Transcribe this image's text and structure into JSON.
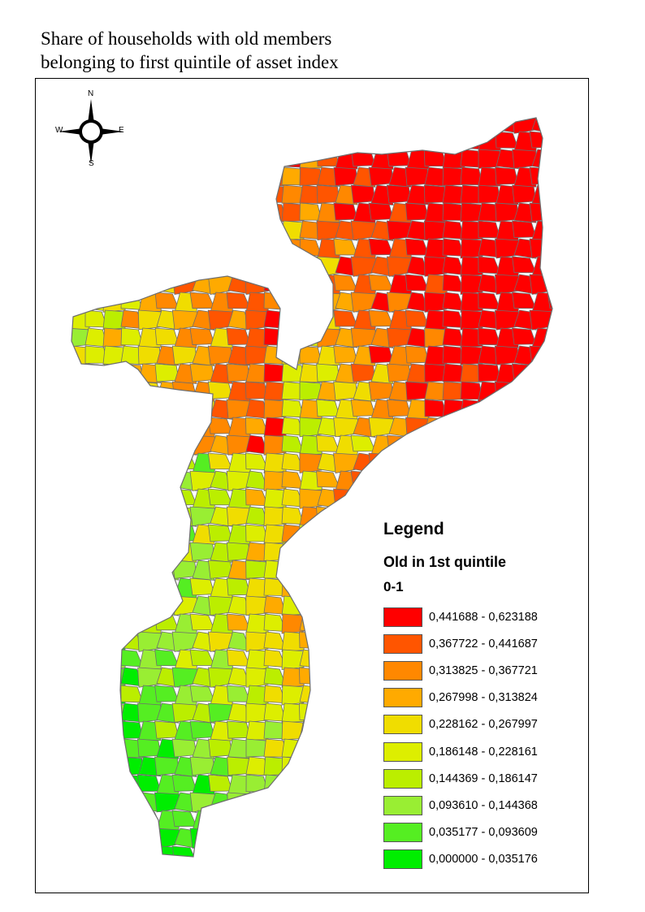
{
  "title": {
    "line1": "Share of households with old members",
    "line2": "belonging to first quintile of asset index"
  },
  "compass": {
    "n": "N",
    "s": "S",
    "e": "E",
    "w": "W"
  },
  "legend": {
    "title": "Legend",
    "layer": "Old in 1st quintile",
    "field": "0-1",
    "classes": [
      {
        "label": "0,441688 - 0,623188",
        "color": "#ff0000"
      },
      {
        "label": "0,367722 - 0,441687",
        "color": "#ff5500"
      },
      {
        "label": "0,313825 - 0,367721",
        "color": "#ff8800"
      },
      {
        "label": "0,267998 - 0,313824",
        "color": "#ffaa00"
      },
      {
        "label": "0,228162 - 0,267997",
        "color": "#f0dd00"
      },
      {
        "label": "0,186148 - 0,228161",
        "color": "#ddee00"
      },
      {
        "label": "0,144369 - 0,186147",
        "color": "#bbee00"
      },
      {
        "label": "0,093610 - 0,144368",
        "color": "#99ee33"
      },
      {
        "label": "0,035177 - 0,093609",
        "color": "#55ee22"
      },
      {
        "label": "0,000000 - 0,035176",
        "color": "#00ee00"
      }
    ]
  },
  "boundary_color": "#6e6e6e"
}
